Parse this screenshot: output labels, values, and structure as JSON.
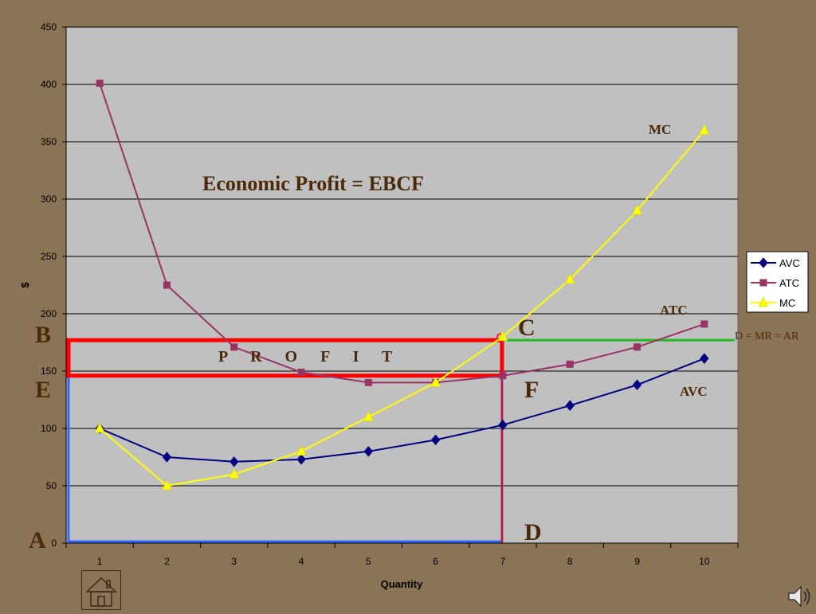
{
  "chart_data": {
    "type": "line",
    "title": "",
    "xlabel": "Quantity",
    "ylabel": "$",
    "x": [
      1,
      2,
      3,
      4,
      5,
      6,
      7,
      8,
      9,
      10
    ],
    "xlim": [
      0.5,
      10.5
    ],
    "ylim": [
      0,
      450
    ],
    "yticks": [
      0,
      50,
      100,
      150,
      200,
      250,
      300,
      350,
      400,
      450
    ],
    "grid": true,
    "legend_position": "right",
    "series": [
      {
        "name": "AVC",
        "color": "#000080",
        "marker": "diamond",
        "values": [
          100,
          75,
          71,
          73,
          80,
          90,
          103,
          120,
          138,
          161
        ]
      },
      {
        "name": "ATC",
        "color": "#993366",
        "marker": "square",
        "values": [
          401,
          225,
          171,
          149,
          140,
          140,
          146,
          156,
          171,
          191
        ]
      },
      {
        "name": "MC",
        "color": "#ffff00",
        "marker": "triangle",
        "values": [
          100,
          50,
          60,
          80,
          110,
          140,
          180,
          230,
          290,
          360
        ]
      }
    ],
    "price_line": {
      "y": 177,
      "x_from": 7,
      "label": "D = MR = AR",
      "color": "#22bb22"
    },
    "profit_rect": {
      "x_from": 0.5,
      "x_to": 7,
      "y_from": 146,
      "y_to": 177,
      "color": "#ff0000"
    },
    "cost_rect": {
      "x_from": 0.5,
      "x_to": 7,
      "y_from": 0,
      "y_to": 146,
      "color": "#3366ff"
    },
    "annotations": {
      "headline": "Economic Profit = EBCF",
      "profit": "P R O F I T",
      "mc_label": "MC",
      "atc_label": "ATC",
      "avc_label": "AVC",
      "point_a": "A",
      "point_b": "B",
      "point_c": "C",
      "point_d": "D",
      "point_e": "E",
      "point_f": "F"
    }
  },
  "nav": {
    "home_icon": "home-icon",
    "speaker_icon": "speaker-icon"
  }
}
